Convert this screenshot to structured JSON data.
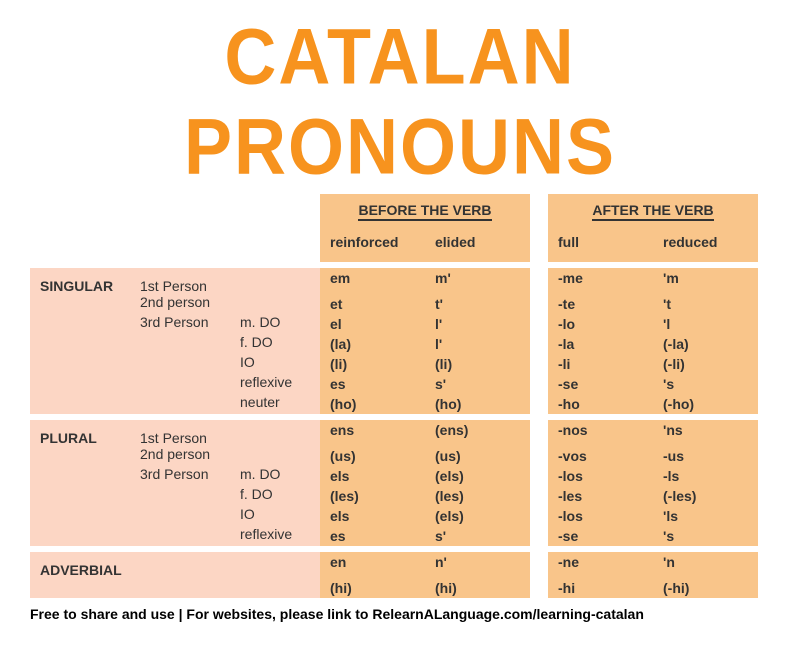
{
  "title": "CATALAN PRONOUNS",
  "colors": {
    "accent": "#f7931e",
    "col_bg": "#f9c58a",
    "row_bg": "#fcd6c4",
    "text": "#333333",
    "page_bg": "#ffffff"
  },
  "header": {
    "before": "BEFORE THE VERB",
    "after": "AFTER THE VERB",
    "reinforced": "reinforced",
    "elided": "elided",
    "full": "full",
    "reduced": "reduced"
  },
  "sections": {
    "singular": "SINGULAR",
    "plural": "PLURAL",
    "adverbial": "ADVERBIAL"
  },
  "persons": {
    "p1": "1st Person",
    "p2": "2nd person",
    "p3": "3rd Person"
  },
  "sub3": {
    "mdo": "m. DO",
    "fdo": "f. DO",
    "io": "IO",
    "reflexive": "reflexive",
    "neuter": "neuter"
  },
  "rows": {
    "s1": {
      "reinforced": "em",
      "elided": "m'",
      "full": "-me",
      "reduced": "'m"
    },
    "s2": {
      "reinforced": "et",
      "elided": "t'",
      "full": "-te",
      "reduced": "'t"
    },
    "s3mdo": {
      "reinforced": "el",
      "elided": "l'",
      "full": "-lo",
      "reduced": "'l"
    },
    "s3fdo": {
      "reinforced": "(la)",
      "elided": "l'",
      "full": "-la",
      "reduced": "(-la)"
    },
    "s3io": {
      "reinforced": "(li)",
      "elided": "(li)",
      "full": "-li",
      "reduced": "(-li)"
    },
    "s3ref": {
      "reinforced": "es",
      "elided": "s'",
      "full": "-se",
      "reduced": "'s"
    },
    "s3neu": {
      "reinforced": "(ho)",
      "elided": "(ho)",
      "full": "-ho",
      "reduced": "(-ho)"
    },
    "p1": {
      "reinforced": "ens",
      "elided": "(ens)",
      "full": "-nos",
      "reduced": "'ns"
    },
    "p2": {
      "reinforced": "(us)",
      "elided": "(us)",
      "full": "-vos",
      "reduced": "-us"
    },
    "p3mdo": {
      "reinforced": "els",
      "elided": "(els)",
      "full": "-los",
      "reduced": "-ls"
    },
    "p3fdo": {
      "reinforced": "(les)",
      "elided": "(les)",
      "full": "-les",
      "reduced": "(-les)"
    },
    "p3io": {
      "reinforced": "els",
      "elided": "(els)",
      "full": "-los",
      "reduced": "'ls"
    },
    "p3ref": {
      "reinforced": "es",
      "elided": "s'",
      "full": "-se",
      "reduced": "'s"
    },
    "adv1": {
      "reinforced": "en",
      "elided": "n'",
      "full": "-ne",
      "reduced": "'n"
    },
    "adv2": {
      "reinforced": "(hi)",
      "elided": "(hi)",
      "full": "-hi",
      "reduced": "(-hi)"
    }
  },
  "footer": {
    "left": "Free to share and use",
    "sep": "   |   ",
    "right": "For websites, please link to RelearnALanguage.com/learning-catalan"
  }
}
